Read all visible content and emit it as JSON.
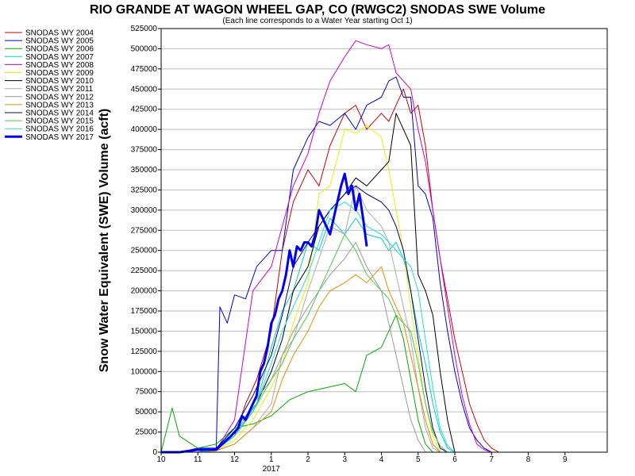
{
  "chart_data": {
    "type": "line",
    "title": "RIO GRANDE AT WAGON WHEEL GAP, CO (RWGC2) SNODAS SWE Volume",
    "subtitle": "(Each line corresponds to a Water Year starting Oct 1)",
    "ylabel": "Snow Water Equivalent (SWE) Volume (acft)",
    "xlabel": "",
    "ylim": [
      0,
      525000
    ],
    "xlim": [
      10,
      9.99
    ],
    "y_ticks": [
      "0",
      "25000",
      "50000",
      "75000",
      "100000",
      "125000",
      "150000",
      "175000",
      "200000",
      "225000",
      "250000",
      "275000",
      "300000",
      "325000",
      "350000",
      "375000",
      "400000",
      "425000",
      "450000",
      "475000",
      "500000",
      "525000"
    ],
    "x_ticks": [
      "10",
      "11",
      "12",
      "1",
      "2",
      "3",
      "4",
      "5",
      "6",
      "7",
      "8",
      "9"
    ],
    "x_year_label": "2017",
    "grid": "horizontal",
    "legend_position": "left",
    "series": [
      {
        "name": "SNODAS WY 2004",
        "color": "#cc0000",
        "width": 1,
        "x": [
          10,
          11,
          11.5,
          12,
          12.3,
          12.6,
          1,
          1.3,
          1.6,
          2,
          2.3,
          2.6,
          3,
          3.3,
          3.6,
          4,
          4.2,
          4.4,
          4.6,
          4.8,
          5,
          5.2,
          5.4,
          5.6,
          5.8,
          6,
          6.2,
          6.4,
          6.6,
          6.8,
          7,
          7.2
        ],
        "y": [
          0,
          0,
          5000,
          20000,
          60000,
          90000,
          150000,
          250000,
          310000,
          350000,
          330000,
          380000,
          420000,
          430000,
          400000,
          420000,
          410000,
          430000,
          450000,
          420000,
          430000,
          380000,
          300000,
          240000,
          190000,
          140000,
          100000,
          60000,
          35000,
          15000,
          5000,
          0
        ]
      },
      {
        "name": "SNODAS WY 2005",
        "color": "#0000cc",
        "width": 1,
        "x": [
          10,
          10.5,
          11,
          11.5,
          11.6,
          11.8,
          12,
          12.3,
          12.6,
          1,
          1.3,
          1.6,
          2,
          2.3,
          2.6,
          3,
          3.3,
          3.6,
          4,
          4.2,
          4.4,
          4.6,
          4.8,
          5,
          5.2,
          5.4,
          5.6,
          5.8,
          6,
          6.2,
          6.4,
          6.6,
          6.8,
          7,
          7.2,
          7.5
        ],
        "y": [
          0,
          0,
          5000,
          5000,
          180000,
          160000,
          195000,
          190000,
          230000,
          250000,
          250000,
          350000,
          390000,
          410000,
          405000,
          420000,
          400000,
          430000,
          440000,
          460000,
          465000,
          440000,
          440000,
          330000,
          320000,
          290000,
          210000,
          150000,
          100000,
          60000,
          30000,
          15000,
          5000,
          0,
          0,
          0
        ]
      },
      {
        "name": "SNODAS WY 2006",
        "color": "#00aa00",
        "width": 1,
        "x": [
          10,
          10.3,
          10.5,
          11,
          11.5,
          12,
          12.5,
          1,
          1.5,
          2,
          2.5,
          3,
          3.3,
          3.6,
          4,
          4.2,
          4.4,
          4.6,
          4.8,
          5,
          5.2,
          5.4
        ],
        "y": [
          0,
          55000,
          20000,
          5000,
          10000,
          30000,
          35000,
          45000,
          65000,
          75000,
          80000,
          85000,
          75000,
          120000,
          130000,
          150000,
          170000,
          140000,
          90000,
          40000,
          10000,
          0
        ]
      },
      {
        "name": "SNODAS WY 2007",
        "color": "#00cccc",
        "width": 1,
        "x": [
          10,
          11,
          11.5,
          12,
          12.3,
          12.6,
          1,
          1.3,
          1.6,
          2,
          2.3,
          2.6,
          3,
          3.3,
          3.6,
          4,
          4.2,
          4.4,
          4.6,
          4.8,
          5,
          5.2,
          5.4,
          5.6,
          5.8,
          6
        ],
        "y": [
          0,
          0,
          3000,
          30000,
          45000,
          60000,
          130000,
          175000,
          200000,
          260000,
          250000,
          290000,
          270000,
          290000,
          270000,
          265000,
          250000,
          260000,
          240000,
          200000,
          150000,
          110000,
          60000,
          25000,
          5000,
          0
        ]
      },
      {
        "name": "SNODAS WY 2008",
        "color": "#cc00cc",
        "width": 1,
        "x": [
          10,
          11,
          11.5,
          12,
          12.5,
          1,
          1.3,
          1.6,
          2,
          2.3,
          2.6,
          3,
          3.3,
          3.6,
          4,
          4.2,
          4.4,
          4.6,
          4.8,
          5,
          5.2,
          5.4,
          5.6,
          5.8,
          6,
          6.2,
          6.4,
          6.6,
          6.8,
          7
        ],
        "y": [
          0,
          0,
          3000,
          40000,
          200000,
          230000,
          280000,
          330000,
          370000,
          420000,
          460000,
          490000,
          510000,
          505000,
          500000,
          505000,
          470000,
          460000,
          450000,
          400000,
          360000,
          300000,
          240000,
          180000,
          120000,
          70000,
          35000,
          10000,
          3000,
          0
        ]
      },
      {
        "name": "SNODAS WY 2009",
        "color": "#eeee00",
        "width": 1,
        "x": [
          10,
          11,
          11.5,
          12,
          12.5,
          1,
          1.3,
          1.6,
          2,
          2.3,
          2.6,
          3,
          3.3,
          3.6,
          4,
          4.2,
          4.4,
          4.6,
          4.8,
          5,
          5.2,
          5.4,
          5.6
        ],
        "y": [
          0,
          0,
          2000,
          15000,
          40000,
          80000,
          110000,
          160000,
          210000,
          320000,
          330000,
          400000,
          395000,
          405000,
          390000,
          350000,
          300000,
          250000,
          180000,
          120000,
          60000,
          20000,
          0
        ]
      },
      {
        "name": "SNODAS WY 2010",
        "color": "#000000",
        "width": 1,
        "x": [
          10,
          11,
          11.5,
          12,
          12.3,
          12.6,
          1,
          1.3,
          1.6,
          2,
          2.3,
          2.6,
          3,
          3.3,
          3.6,
          4,
          4.2,
          4.4,
          4.6,
          4.8,
          5,
          5.2,
          5.4,
          5.6,
          5.8,
          6
        ],
        "y": [
          0,
          0,
          3000,
          20000,
          40000,
          60000,
          100000,
          140000,
          200000,
          230000,
          280000,
          300000,
          320000,
          340000,
          330000,
          350000,
          360000,
          420000,
          400000,
          380000,
          220000,
          200000,
          170000,
          100000,
          40000,
          0
        ]
      },
      {
        "name": "SNODAS WY 2011",
        "color": "#aaaaaa",
        "width": 1,
        "x": [
          10,
          11,
          11.5,
          12,
          12.5,
          1,
          1.3,
          1.6,
          2,
          2.3,
          2.6,
          3,
          3.3,
          3.6,
          4,
          4.2,
          4.4,
          4.6,
          4.8,
          5,
          5.2,
          5.4,
          5.6
        ],
        "y": [
          0,
          0,
          2000,
          10000,
          30000,
          60000,
          120000,
          140000,
          200000,
          240000,
          280000,
          270000,
          330000,
          300000,
          280000,
          260000,
          220000,
          180000,
          140000,
          80000,
          30000,
          5000,
          0
        ]
      },
      {
        "name": "SNODAS WY 2012",
        "color": "#999999",
        "width": 1,
        "x": [
          10,
          11,
          11.5,
          12,
          12.5,
          1,
          1.3,
          1.6,
          2,
          2.3,
          2.6,
          3,
          3.3,
          3.6,
          4,
          4.2,
          4.4,
          4.6,
          4.8,
          5,
          5.2
        ],
        "y": [
          0,
          0,
          5000,
          20000,
          60000,
          90000,
          120000,
          150000,
          180000,
          200000,
          220000,
          240000,
          260000,
          230000,
          200000,
          160000,
          120000,
          80000,
          40000,
          15000,
          0
        ]
      },
      {
        "name": "SNODAS WY 2013",
        "color": "#ee8800",
        "width": 1,
        "x": [
          10,
          11,
          11.5,
          12,
          12.5,
          1,
          1.3,
          1.6,
          2,
          2.3,
          2.6,
          3,
          3.3,
          3.6,
          4,
          4.2,
          4.4,
          4.6,
          4.8,
          5,
          5.2,
          5.4,
          5.6
        ],
        "y": [
          0,
          0,
          2000,
          10000,
          30000,
          50000,
          90000,
          120000,
          150000,
          180000,
          200000,
          210000,
          220000,
          210000,
          230000,
          200000,
          180000,
          160000,
          120000,
          80000,
          40000,
          10000,
          0
        ]
      },
      {
        "name": "SNODAS WY 2014",
        "color": "#000088",
        "width": 1,
        "x": [
          10,
          11,
          11.5,
          12,
          12.5,
          1,
          1.3,
          1.6,
          2,
          2.3,
          2.6,
          3,
          3.3,
          3.6,
          4,
          4.2,
          4.4,
          4.6,
          4.8,
          5,
          5.2,
          5.4,
          5.6,
          5.8
        ],
        "y": [
          0,
          0,
          5000,
          30000,
          70000,
          120000,
          170000,
          230000,
          260000,
          280000,
          300000,
          320000,
          330000,
          320000,
          310000,
          300000,
          280000,
          250000,
          200000,
          140000,
          80000,
          30000,
          5000,
          0
        ]
      },
      {
        "name": "SNODAS WY 2015",
        "color": "#44cc44",
        "width": 1,
        "x": [
          10,
          11,
          11.5,
          12,
          12.5,
          1,
          1.3,
          1.6,
          2,
          2.3,
          2.6,
          3,
          3.3,
          3.6,
          4,
          4.2,
          4.4,
          4.6,
          4.8,
          5,
          5.2,
          5.4,
          5.6,
          5.8,
          6
        ],
        "y": [
          0,
          0,
          3000,
          20000,
          50000,
          90000,
          110000,
          140000,
          170000,
          200000,
          230000,
          270000,
          250000,
          220000,
          200000,
          190000,
          170000,
          160000,
          150000,
          110000,
          60000,
          25000,
          8000,
          0,
          0
        ]
      },
      {
        "name": "SNODAS WY 2016",
        "color": "#22dddd",
        "width": 1,
        "x": [
          10,
          11,
          11.5,
          12,
          12.3,
          12.6,
          1,
          1.3,
          1.6,
          2,
          2.3,
          2.6,
          3,
          3.3,
          3.6,
          4,
          4.2,
          4.4,
          4.6,
          4.8,
          5,
          5.2,
          5.4,
          5.6,
          5.8,
          6
        ],
        "y": [
          0,
          0,
          3000,
          20000,
          40000,
          60000,
          110000,
          150000,
          180000,
          220000,
          260000,
          300000,
          310000,
          300000,
          280000,
          270000,
          260000,
          250000,
          240000,
          230000,
          200000,
          140000,
          80000,
          30000,
          8000,
          0
        ]
      },
      {
        "name": "SNODAS WY 2017",
        "color": "#0000ee",
        "width": 3,
        "x": [
          10,
          10.5,
          11,
          11.5,
          11.9,
          12,
          12.1,
          12.2,
          12.3,
          12.4,
          12.5,
          12.6,
          12.7,
          12.8,
          12.9,
          1,
          1.1,
          1.2,
          1.3,
          1.4,
          1.5,
          1.6,
          1.7,
          1.8,
          1.9,
          2,
          2.1,
          2.2,
          2.3,
          2.4,
          2.5,
          2.6,
          2.7,
          2.8,
          2.9,
          3,
          3.1,
          3.2,
          3.3,
          3.4,
          3.5,
          3.6
        ],
        "y": [
          0,
          0,
          3000,
          3000,
          20000,
          25000,
          30000,
          45000,
          40000,
          50000,
          60000,
          70000,
          100000,
          110000,
          130000,
          160000,
          170000,
          190000,
          200000,
          220000,
          250000,
          230000,
          255000,
          250000,
          260000,
          260000,
          255000,
          270000,
          300000,
          290000,
          280000,
          270000,
          290000,
          310000,
          330000,
          345000,
          320000,
          330000,
          300000,
          320000,
          290000,
          255000
        ]
      }
    ]
  }
}
